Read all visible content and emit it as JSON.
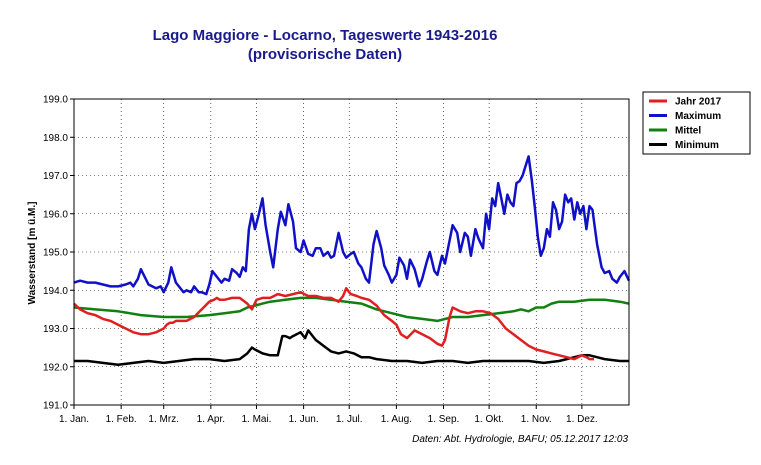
{
  "chart_data": {
    "type": "line",
    "title": "Lago Maggiore - Locarno, Tageswerte 1943-2016",
    "subtitle": "(provisorische Daten)",
    "ylabel": "Wasserstand [m ü.M.]",
    "ylim": [
      191.0,
      199.0
    ],
    "yticks": [
      "191.0",
      "192.0",
      "193.0",
      "194.0",
      "195.0",
      "196.0",
      "197.0",
      "198.0",
      "199.0"
    ],
    "xlim": [
      1,
      366
    ],
    "xticks": [
      {
        "day": 1,
        "label": "1. Jan."
      },
      {
        "day": 32,
        "label": "1. Feb."
      },
      {
        "day": 60,
        "label": "1. Mrz."
      },
      {
        "day": 91,
        "label": "1. Apr."
      },
      {
        "day": 121,
        "label": "1. Mai."
      },
      {
        "day": 152,
        "label": "1. Jun."
      },
      {
        "day": 182,
        "label": "1. Jul."
      },
      {
        "day": 213,
        "label": "1. Aug."
      },
      {
        "day": 244,
        "label": "1. Sep."
      },
      {
        "day": 274,
        "label": "1. Okt."
      },
      {
        "day": 305,
        "label": "1. Nov."
      },
      {
        "day": 335,
        "label": "1. Dez."
      }
    ],
    "grid": true,
    "legend_position": "top-right",
    "source_note": "Daten: Abt. Hydrologie, BAFU; 05.12.2017 12:03",
    "series": [
      {
        "name": "Jahr 2017",
        "color": "#e02020",
        "x": [
          1,
          5,
          10,
          15,
          20,
          25,
          30,
          35,
          40,
          45,
          50,
          55,
          60,
          62,
          64,
          66,
          68,
          70,
          75,
          80,
          85,
          90,
          93,
          95,
          97,
          100,
          105,
          110,
          115,
          118,
          121,
          125,
          130,
          135,
          140,
          145,
          150,
          155,
          160,
          165,
          170,
          175,
          178,
          180,
          183,
          187,
          190,
          195,
          200,
          205,
          210,
          213,
          216,
          220,
          225,
          230,
          235,
          240,
          243,
          245,
          248,
          250,
          255,
          260,
          265,
          270,
          275,
          280,
          285,
          290,
          295,
          300,
          305,
          310,
          315,
          320,
          325,
          330,
          335,
          338,
          340,
          343
        ],
        "y": [
          193.65,
          193.5,
          193.4,
          193.35,
          193.25,
          193.2,
          193.1,
          193.0,
          192.9,
          192.85,
          192.85,
          192.9,
          193.0,
          193.1,
          193.15,
          193.15,
          193.2,
          193.2,
          193.2,
          193.3,
          193.5,
          193.7,
          193.75,
          193.8,
          193.75,
          193.75,
          193.8,
          193.8,
          193.65,
          193.5,
          193.75,
          193.8,
          193.8,
          193.9,
          193.85,
          193.9,
          193.95,
          193.85,
          193.85,
          193.8,
          193.8,
          193.7,
          193.85,
          194.05,
          193.9,
          193.85,
          193.8,
          193.75,
          193.6,
          193.35,
          193.2,
          193.1,
          192.85,
          192.75,
          192.95,
          192.85,
          192.75,
          192.6,
          192.55,
          192.7,
          193.3,
          193.55,
          193.45,
          193.4,
          193.45,
          193.45,
          193.4,
          193.25,
          193.0,
          192.85,
          192.7,
          192.55,
          192.45,
          192.4,
          192.35,
          192.3,
          192.25,
          192.2,
          192.3,
          192.25,
          192.2,
          192.2
        ]
      },
      {
        "name": "Maximum",
        "color": "#1010c8",
        "x": [
          1,
          5,
          10,
          15,
          20,
          25,
          30,
          35,
          38,
          40,
          43,
          45,
          50,
          55,
          58,
          60,
          63,
          65,
          68,
          70,
          73,
          75,
          78,
          80,
          83,
          85,
          88,
          90,
          92,
          95,
          98,
          100,
          103,
          105,
          108,
          110,
          112,
          114,
          116,
          118,
          120,
          122,
          125,
          127,
          130,
          132,
          135,
          137,
          140,
          142,
          145,
          147,
          150,
          152,
          155,
          158,
          160,
          163,
          165,
          168,
          170,
          172,
          175,
          178,
          180,
          183,
          185,
          188,
          190,
          193,
          195,
          198,
          200,
          203,
          205,
          208,
          210,
          213,
          215,
          218,
          220,
          222,
          225,
          228,
          230,
          233,
          235,
          238,
          240,
          243,
          245,
          248,
          250,
          253,
          255,
          258,
          260,
          262,
          265,
          267,
          270,
          272,
          274,
          276,
          278,
          280,
          282,
          284,
          286,
          288,
          290,
          292,
          294,
          296,
          298,
          300,
          302,
          304,
          306,
          308,
          310,
          312,
          314,
          316,
          318,
          320,
          322,
          324,
          326,
          328,
          330,
          332,
          334,
          336,
          338,
          340,
          342,
          345,
          348,
          350,
          353,
          355,
          358,
          360,
          363,
          366
        ],
        "y": [
          194.2,
          194.25,
          194.2,
          194.2,
          194.15,
          194.1,
          194.1,
          194.15,
          194.2,
          194.1,
          194.3,
          194.55,
          194.15,
          194.05,
          194.1,
          193.95,
          194.2,
          194.6,
          194.2,
          194.1,
          193.95,
          194.0,
          193.95,
          194.1,
          193.95,
          193.95,
          193.9,
          194.15,
          194.5,
          194.35,
          194.2,
          194.3,
          194.25,
          194.55,
          194.45,
          194.35,
          194.6,
          194.5,
          195.6,
          196.0,
          195.6,
          195.9,
          196.4,
          195.7,
          195.0,
          194.6,
          195.6,
          196.05,
          195.7,
          196.25,
          195.8,
          195.1,
          195.0,
          195.3,
          194.95,
          194.9,
          195.1,
          195.1,
          194.9,
          195.0,
          194.85,
          194.9,
          195.5,
          195.0,
          194.85,
          194.95,
          195.0,
          194.7,
          194.6,
          194.3,
          194.2,
          195.2,
          195.55,
          195.1,
          194.65,
          194.4,
          194.2,
          194.4,
          194.85,
          194.65,
          194.3,
          194.8,
          194.55,
          194.1,
          194.3,
          194.75,
          195.0,
          194.5,
          194.4,
          194.9,
          194.7,
          195.3,
          195.7,
          195.5,
          195.0,
          195.5,
          195.4,
          194.9,
          195.6,
          195.35,
          195.1,
          196.0,
          195.6,
          196.4,
          196.2,
          196.8,
          196.4,
          196.0,
          196.5,
          196.3,
          196.2,
          196.8,
          196.85,
          197.0,
          197.25,
          197.5,
          196.9,
          196.2,
          195.4,
          194.9,
          195.1,
          195.6,
          195.4,
          196.3,
          196.1,
          195.6,
          195.8,
          196.5,
          196.3,
          196.4,
          195.85,
          196.3,
          196.0,
          196.2,
          195.6,
          196.2,
          196.1,
          195.2,
          194.6,
          194.45,
          194.5,
          194.3,
          194.2,
          194.35,
          194.5,
          194.25
        ],
        "name_label_only": false
      },
      {
        "name": "Mittel",
        "color": "#108010",
        "x": [
          1,
          15,
          30,
          45,
          60,
          75,
          90,
          100,
          110,
          115,
          120,
          125,
          130,
          140,
          150,
          160,
          170,
          180,
          190,
          200,
          210,
          220,
          230,
          240,
          250,
          260,
          270,
          280,
          290,
          295,
          300,
          305,
          310,
          315,
          320,
          330,
          340,
          350,
          360,
          366
        ],
        "y": [
          193.55,
          193.5,
          193.45,
          193.35,
          193.3,
          193.3,
          193.35,
          193.4,
          193.45,
          193.55,
          193.6,
          193.65,
          193.7,
          193.75,
          193.8,
          193.8,
          193.75,
          193.7,
          193.65,
          193.5,
          193.4,
          193.3,
          193.25,
          193.2,
          193.3,
          193.3,
          193.35,
          193.4,
          193.45,
          193.5,
          193.45,
          193.55,
          193.55,
          193.65,
          193.7,
          193.7,
          193.75,
          193.75,
          193.7,
          193.65
        ]
      },
      {
        "name": "Minimum",
        "color": "#000000",
        "x": [
          1,
          10,
          20,
          30,
          40,
          50,
          60,
          70,
          80,
          90,
          100,
          110,
          115,
          118,
          120,
          125,
          130,
          135,
          138,
          140,
          143,
          145,
          150,
          153,
          155,
          158,
          160,
          165,
          170,
          175,
          180,
          185,
          190,
          195,
          200,
          210,
          220,
          230,
          240,
          250,
          260,
          270,
          280,
          290,
          300,
          310,
          320,
          325,
          330,
          335,
          340,
          345,
          350,
          360,
          366
        ],
        "y": [
          192.15,
          192.15,
          192.1,
          192.05,
          192.1,
          192.15,
          192.1,
          192.15,
          192.2,
          192.2,
          192.15,
          192.2,
          192.35,
          192.5,
          192.45,
          192.35,
          192.3,
          192.3,
          192.8,
          192.8,
          192.75,
          192.8,
          192.9,
          192.75,
          192.95,
          192.8,
          192.7,
          192.55,
          192.4,
          192.35,
          192.4,
          192.35,
          192.25,
          192.25,
          192.2,
          192.15,
          192.15,
          192.1,
          192.15,
          192.15,
          192.1,
          192.15,
          192.15,
          192.15,
          192.15,
          192.1,
          192.15,
          192.2,
          192.25,
          192.3,
          192.3,
          192.25,
          192.2,
          192.15,
          192.15
        ]
      }
    ]
  }
}
